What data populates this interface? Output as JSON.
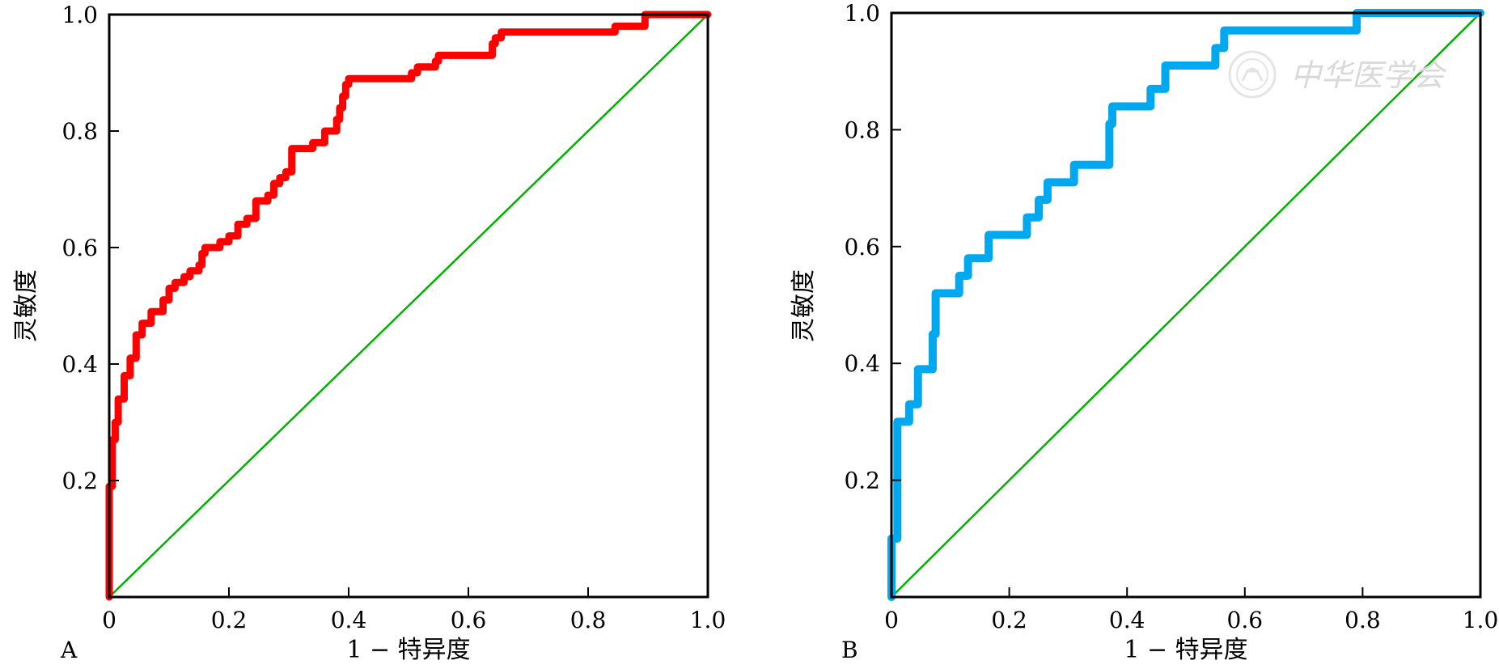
{
  "watermark": {
    "text": "中华医学会"
  },
  "chart_data": [
    {
      "type": "line",
      "panel_label": "A",
      "xlabel": "1 − 特异度",
      "ylabel": "灵敏度",
      "xlim": [
        0,
        1.0
      ],
      "ylim": [
        0,
        1.0
      ],
      "x_ticks": [
        "0",
        "0.2",
        "0.4",
        "0.6",
        "0.8",
        "1.0"
      ],
      "y_ticks": [
        "0.2",
        "0.4",
        "0.6",
        "0.8",
        "1.0"
      ],
      "grid": false,
      "colors": {
        "roc": "#ff0000",
        "reference": "#00b200"
      },
      "series": [
        {
          "x": [
            0,
            0,
            0.005,
            0.005,
            0.01,
            0.01,
            0.015,
            0.015,
            0.025,
            0.025,
            0.035,
            0.035,
            0.045,
            0.045,
            0.055,
            0.055,
            0.07,
            0.07,
            0.09,
            0.09,
            0.1,
            0.1,
            0.11,
            0.11,
            0.125,
            0.125,
            0.135,
            0.135,
            0.15,
            0.15,
            0.155,
            0.155,
            0.16,
            0.16,
            0.185,
            0.185,
            0.2,
            0.2,
            0.215,
            0.215,
            0.23,
            0.23,
            0.245,
            0.245,
            0.265,
            0.265,
            0.275,
            0.275,
            0.285,
            0.285,
            0.295,
            0.295,
            0.305,
            0.305,
            0.34,
            0.34,
            0.36,
            0.36,
            0.38,
            0.38,
            0.385,
            0.385,
            0.39,
            0.39,
            0.395,
            0.395,
            0.4,
            0.4,
            0.405,
            0.405,
            0.42,
            0.42,
            0.42,
            0.42,
            0.505,
            0.505,
            0.515,
            0.515,
            0.545,
            0.545,
            0.55,
            0.55,
            0.64,
            0.64,
            0.645,
            0.645,
            0.655,
            0.655,
            0.845,
            0.845,
            0.895,
            0.895,
            1.0
          ],
          "y": [
            0,
            0.19,
            0.19,
            0.27,
            0.27,
            0.3,
            0.3,
            0.34,
            0.34,
            0.38,
            0.38,
            0.41,
            0.41,
            0.45,
            0.45,
            0.47,
            0.47,
            0.49,
            0.49,
            0.51,
            0.51,
            0.53,
            0.53,
            0.54,
            0.54,
            0.55,
            0.55,
            0.56,
            0.56,
            0.57,
            0.57,
            0.59,
            0.59,
            0.6,
            0.6,
            0.61,
            0.61,
            0.62,
            0.62,
            0.64,
            0.64,
            0.65,
            0.65,
            0.68,
            0.68,
            0.69,
            0.69,
            0.71,
            0.71,
            0.72,
            0.72,
            0.73,
            0.73,
            0.77,
            0.77,
            0.78,
            0.78,
            0.8,
            0.8,
            0.82,
            0.82,
            0.84,
            0.84,
            0.86,
            0.86,
            0.88,
            0.88,
            0.89,
            0.89,
            0.89,
            0.89,
            0.89,
            0.89,
            0.89,
            0.89,
            0.9,
            0.9,
            0.91,
            0.91,
            0.92,
            0.92,
            0.93,
            0.93,
            0.95,
            0.95,
            0.96,
            0.96,
            0.97,
            0.97,
            0.98,
            0.98,
            1.0,
            1.0
          ]
        },
        {
          "x": [
            0,
            1.0
          ],
          "y": [
            0,
            1.0
          ]
        }
      ]
    },
    {
      "type": "line",
      "panel_label": "B",
      "xlabel": "1 − 特异度",
      "ylabel": "灵敏度",
      "xlim": [
        0,
        1.0
      ],
      "ylim": [
        0,
        1.0
      ],
      "x_ticks": [
        "0",
        "0.2",
        "0.4",
        "0.6",
        "0.8",
        "1.0"
      ],
      "y_ticks": [
        "0.2",
        "0.4",
        "0.6",
        "0.8",
        "1.0"
      ],
      "grid": false,
      "colors": {
        "roc": "#00a8f0",
        "reference": "#00b200"
      },
      "series": [
        {
          "x": [
            0,
            0,
            0.01,
            0.01,
            0.015,
            0.015,
            0.03,
            0.03,
            0.045,
            0.045,
            0.065,
            0.065,
            0.07,
            0.07,
            0.075,
            0.075,
            0.095,
            0.095,
            0.115,
            0.115,
            0.13,
            0.13,
            0.145,
            0.145,
            0.165,
            0.165,
            0.2,
            0.2,
            0.23,
            0.23,
            0.25,
            0.25,
            0.265,
            0.265,
            0.29,
            0.29,
            0.31,
            0.31,
            0.33,
            0.33,
            0.37,
            0.37,
            0.375,
            0.375,
            0.385,
            0.385,
            0.44,
            0.44,
            0.465,
            0.465,
            0.49,
            0.49,
            0.51,
            0.51,
            0.55,
            0.55,
            0.565,
            0.565,
            0.58,
            0.58,
            0.79,
            0.79,
            1.0
          ],
          "y": [
            0,
            0.1,
            0.1,
            0.3,
            0.3,
            0.3,
            0.3,
            0.33,
            0.33,
            0.39,
            0.39,
            0.39,
            0.39,
            0.45,
            0.45,
            0.52,
            0.52,
            0.52,
            0.52,
            0.55,
            0.55,
            0.58,
            0.58,
            0.58,
            0.58,
            0.62,
            0.62,
            0.62,
            0.62,
            0.65,
            0.65,
            0.68,
            0.68,
            0.71,
            0.71,
            0.71,
            0.71,
            0.74,
            0.74,
            0.74,
            0.74,
            0.81,
            0.81,
            0.84,
            0.84,
            0.84,
            0.84,
            0.87,
            0.87,
            0.91,
            0.91,
            0.91,
            0.91,
            0.91,
            0.91,
            0.94,
            0.94,
            0.97,
            0.97,
            0.97,
            0.97,
            1.0,
            1.0
          ]
        },
        {
          "x": [
            0,
            1.0
          ],
          "y": [
            0,
            1.0
          ]
        }
      ]
    }
  ]
}
